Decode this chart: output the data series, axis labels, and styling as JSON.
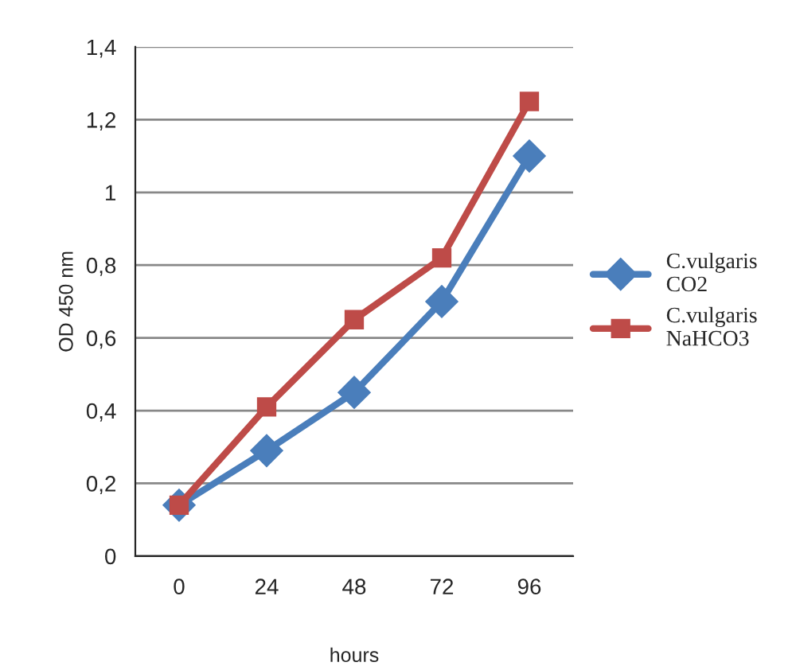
{
  "chart_data": {
    "type": "line",
    "xlabel": "hours",
    "ylabel": "OD 450 nm",
    "categories": [
      "0",
      "24",
      "48",
      "72",
      "96"
    ],
    "series": [
      {
        "name": "C.vulgaris CO2",
        "color": "#4a7ebb",
        "marker": "diamond",
        "values": [
          0.14,
          0.29,
          0.45,
          0.7,
          1.1
        ]
      },
      {
        "name": "C.vulgaris NaHCO3",
        "color": "#be4b48",
        "marker": "square",
        "values": [
          0.14,
          0.41,
          0.65,
          0.82,
          1.25
        ]
      }
    ],
    "ylim": [
      0,
      1.4
    ],
    "yticks": [
      0,
      {
        "value": 0.2,
        "label": "0,2"
      },
      {
        "value": 0.4,
        "label": "0,4"
      },
      {
        "value": 0.6,
        "label": "0,6"
      },
      {
        "value": 0.8,
        "label": "0,8"
      },
      1,
      {
        "value": 1.2,
        "label": "1,2"
      },
      {
        "value": 1.4,
        "label": "1,4"
      }
    ],
    "grid": "y",
    "legend": "right",
    "line_style": "solid"
  }
}
